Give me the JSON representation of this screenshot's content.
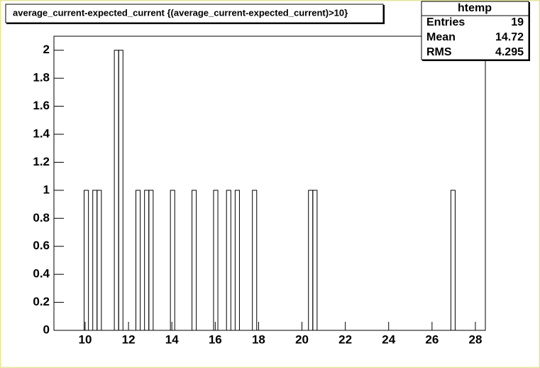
{
  "chart_data": {
    "type": "histogram",
    "title": "average_current-expected_current {(average_current-expected_current)>10}",
    "bins": [
      8.56,
      9.953,
      10.152,
      10.351,
      10.55,
      10.749,
      11.346,
      11.545,
      11.744,
      12.341,
      12.54,
      12.739,
      12.938,
      13.137,
      13.933,
      14.132,
      14.928,
      15.127,
      15.923,
      16.122,
      16.52,
      16.719,
      16.918,
      17.117,
      17.714,
      17.913,
      20.301,
      20.5,
      20.699,
      26.868,
      27.067,
      28.46
    ],
    "values": [
      0,
      1,
      0,
      1,
      1,
      0,
      2,
      2,
      0,
      1,
      0,
      1,
      1,
      0,
      1,
      0,
      1,
      0,
      1,
      0,
      1,
      0,
      1,
      0,
      1,
      0,
      1,
      1,
      0,
      1,
      0
    ],
    "color": "#000000",
    "xlim": [
      8.56,
      28.46
    ],
    "xticks": [
      10,
      12,
      14,
      16,
      18,
      20,
      22,
      24,
      26,
      28
    ],
    "ylim": [
      0,
      2.1
    ],
    "yticks": [
      0,
      0.2,
      0.4,
      0.6,
      0.8,
      1,
      1.2,
      1.4,
      1.6,
      1.8,
      2
    ],
    "stats": {
      "title": "htemp",
      "rows": [
        [
          "Entries",
          "19"
        ],
        [
          "Mean",
          "14.72"
        ],
        [
          "RMS",
          "4.295"
        ]
      ]
    }
  }
}
